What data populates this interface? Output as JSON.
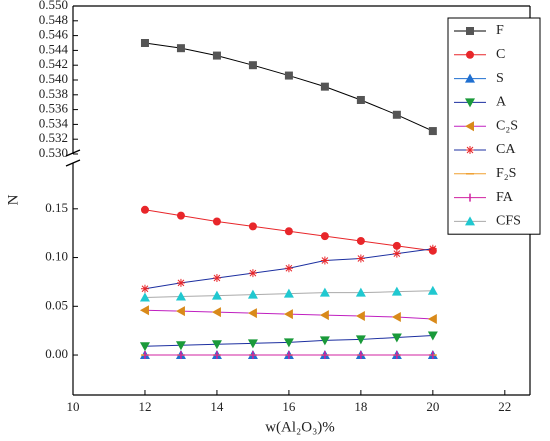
{
  "chart_data": [
    {
      "type": "line",
      "x": [
        12,
        13,
        14,
        15,
        16,
        17,
        18,
        19,
        20
      ],
      "xlim": [
        10,
        22.7
      ],
      "ylim": [
        0.53,
        0.55
      ],
      "yticks": [
        {
          "value": 0.53,
          "label": "0.530"
        },
        0.532,
        0.534,
        0.536,
        0.538,
        {
          "value": 0.54,
          "label": "0.540"
        },
        0.542,
        0.544,
        0.546,
        0.548,
        {
          "value": 0.55,
          "label": "0.550"
        }
      ],
      "series": [
        {
          "name": "F",
          "color": "#555555",
          "line_color": "#000000",
          "marker": "square",
          "values": [
            0.545,
            0.5443,
            0.5433,
            0.542,
            0.5406,
            0.5391,
            0.5373,
            0.5353,
            0.5331
          ]
        }
      ]
    },
    {
      "type": "line",
      "x_label": "w(Al₂O₃)%",
      "y_label": "N",
      "x": [
        12,
        13,
        14,
        15,
        16,
        17,
        18,
        19,
        20
      ],
      "xlim": [
        10,
        22.7
      ],
      "xticks": [
        10,
        12,
        14,
        16,
        18,
        20,
        22
      ],
      "ylim": [
        -0.041,
        0.197
      ],
      "yticks": [
        {
          "value": 0,
          "label": "0.00"
        },
        0.05,
        {
          "value": 0.1,
          "label": "0.10"
        },
        0.15
      ],
      "series": [
        {
          "name": "C",
          "color": "#e8262a",
          "line_color": "#e8262a",
          "marker": "circle",
          "values": [
            0.149,
            0.143,
            0.137,
            0.132,
            0.127,
            0.122,
            0.117,
            0.112,
            0.107
          ]
        },
        {
          "name": "S",
          "color": "#1f6fd0",
          "line_color": "#1f6fd0",
          "marker": "triangle-up",
          "values": [
            0,
            0,
            0,
            0,
            0,
            0,
            0,
            0,
            0
          ]
        },
        {
          "name": "A",
          "color": "#1a9a3a",
          "line_color": "#1c2fa0",
          "marker": "triangle-down",
          "values": [
            0.009,
            0.01,
            0.011,
            0.012,
            0.013,
            0.015,
            0.016,
            0.018,
            0.02
          ]
        },
        {
          "name": "C₂S",
          "color": "#d98a1a",
          "line_color": "#c020c0",
          "marker": "triangle-left",
          "values": [
            0.046,
            0.045,
            0.044,
            0.043,
            0.042,
            0.041,
            0.04,
            0.039,
            0.037
          ]
        },
        {
          "name": "CA",
          "color": "#e8262a",
          "line_color": "#1c2fa0",
          "marker": "asterisk",
          "values": [
            0.068,
            0.074,
            0.079,
            0.084,
            0.089,
            0.097,
            0.099,
            0.104,
            0.109
          ]
        },
        {
          "name": "F₂S",
          "color": "#f0a030",
          "line_color": "#f0a030",
          "marker": "dash",
          "values": [
            0,
            0,
            0,
            0,
            0,
            0,
            0,
            0,
            0
          ]
        },
        {
          "name": "FA",
          "color": "#d020a0",
          "line_color": "#d020a0",
          "marker": "vbar",
          "values": [
            0,
            0,
            0,
            0,
            0,
            0,
            0,
            0,
            0
          ]
        },
        {
          "name": "CFS",
          "color": "#20c8d0",
          "line_color": "#aaaaaa",
          "marker": "triangle-up",
          "values": [
            0.059,
            0.06,
            0.061,
            0.062,
            0.063,
            0.064,
            0.064,
            0.065,
            0.066
          ]
        }
      ]
    }
  ]
}
